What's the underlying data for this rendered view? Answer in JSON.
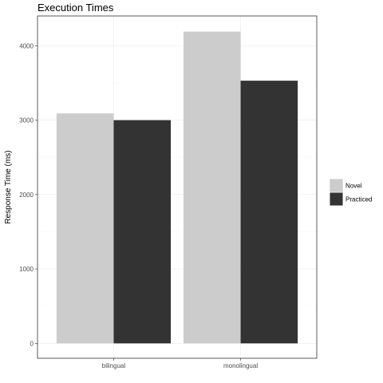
{
  "chart_data": {
    "type": "bar",
    "title": "Execution Times",
    "xlabel": "",
    "ylabel": "Response Time (ms)",
    "categories": [
      "bilingual",
      "monolingual"
    ],
    "series": [
      {
        "name": "Novel",
        "values": [
          3090,
          4190
        ],
        "color": "#cccccc"
      },
      {
        "name": "Practiced",
        "values": [
          3000,
          3530
        ],
        "color": "#333333"
      }
    ],
    "yticks": [
      0,
      1000,
      2000,
      3000,
      4000
    ],
    "ylim": [
      -200,
      4400
    ],
    "grid": true,
    "legend": "right"
  }
}
